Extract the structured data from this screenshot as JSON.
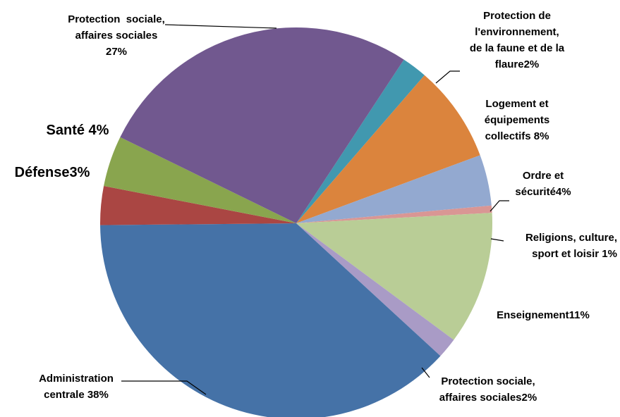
{
  "chart_data": {
    "type": "pie",
    "title": "",
    "start_angle_deg": 33.3,
    "direction": "clockwise",
    "slices": [
      {
        "key": "prot_env",
        "label": "Protection de l'environnement, de la faune et de la flaure",
        "value": 2.1,
        "color": "#4198AF"
      },
      {
        "key": "logement",
        "label": "Logement et équipements collectifs",
        "value": 8,
        "color": "#DB843D"
      },
      {
        "key": "ordre",
        "label": "Ordre et sécurité",
        "value": 4.2,
        "color": "#93A9D0"
      },
      {
        "key": "religions",
        "label": "Religions, culture, sport et loisir",
        "value": 0.6,
        "color": "#D99694"
      },
      {
        "key": "enseignement",
        "label": "Enseignement",
        "value": 11,
        "color": "#B9CD96"
      },
      {
        "key": "prot_sociale2",
        "label": "Protection sociale, affaires sociales",
        "value": 1.7,
        "color": "#A99BC6"
      },
      {
        "key": "administration",
        "label": "Administration centrale",
        "value": 38,
        "color": "#4572A7"
      },
      {
        "key": "defense",
        "label": "Défense",
        "value": 3.2,
        "color": "#AA4643"
      },
      {
        "key": "sante",
        "label": "Santé",
        "value": 4.2,
        "color": "#89A54E"
      },
      {
        "key": "prot_sociale",
        "label": "Protection sociale, affaires sociales",
        "value": 27,
        "color": "#71588F"
      }
    ],
    "data_labels": [
      {
        "key": "prot_env",
        "lines": [
          "Protection de",
          "l'environnement,",
          "de la faune et de la",
          "flaure2%"
        ],
        "anchor": "middle",
        "big": false
      },
      {
        "key": "logement",
        "lines": [
          "Logement et",
          "équipements",
          "collectifs 8%"
        ],
        "anchor": "middle",
        "big": false
      },
      {
        "key": "ordre",
        "lines": [
          "Ordre et",
          "sécurité4%"
        ],
        "anchor": "middle",
        "big": false
      },
      {
        "key": "religions",
        "lines": [
          "Religions, culture,",
          "sport et loisir 1%"
        ],
        "anchor": "end",
        "big": false
      },
      {
        "key": "enseignement",
        "lines": [
          "Enseignement11%"
        ],
        "anchor": "middle",
        "big": false
      },
      {
        "key": "prot_sociale2",
        "lines": [
          "Protection sociale,",
          "affaires sociales2%"
        ],
        "anchor": "middle",
        "big": false
      },
      {
        "key": "administration",
        "lines": [
          "Administration",
          "centrale 38%"
        ],
        "anchor": "middle",
        "big": false
      },
      {
        "key": "defense",
        "lines": [
          "Défense3%"
        ],
        "anchor": "middle",
        "big": true
      },
      {
        "key": "sante",
        "lines": [
          "Santé 4%"
        ],
        "anchor": "middle",
        "big": true
      },
      {
        "key": "prot_sociale",
        "lines": [
          "Protection  sociale,",
          "affaires sociales",
          "27%"
        ],
        "anchor": "middle",
        "big": false
      }
    ]
  }
}
